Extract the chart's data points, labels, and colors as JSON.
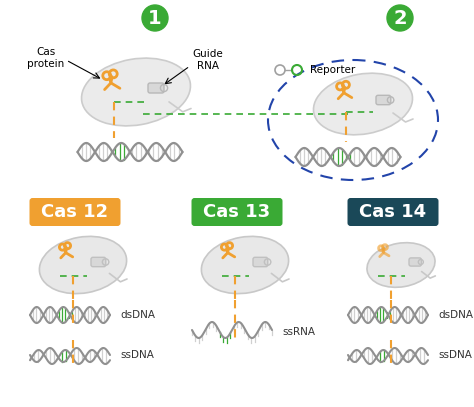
{
  "bg_color": "#ffffff",
  "orange": "#F0A030",
  "green": "#3aaa35",
  "dark_teal": "#1a4858",
  "gray": "#a0a0a0",
  "light_gray": "#d0d0d0",
  "dna_gray": "#909090",
  "hi_green": "#3aaa35",
  "blue_dashed": "#2244aa",
  "cas12_color": "#F0A030",
  "cas13_color": "#3aaa35",
  "cas14_color": "#1a4858",
  "labels": {
    "cas12": "Cas 12",
    "cas13": "Cas 13",
    "cas14": "Cas 14",
    "dsdna": "dsDNA",
    "ssdna": "ssDNA",
    "ssrna": "ssRNA",
    "cas_protein": "Cas\nprotein",
    "guide_rna": "Guide\nRNA",
    "reporter": "Reporter"
  }
}
